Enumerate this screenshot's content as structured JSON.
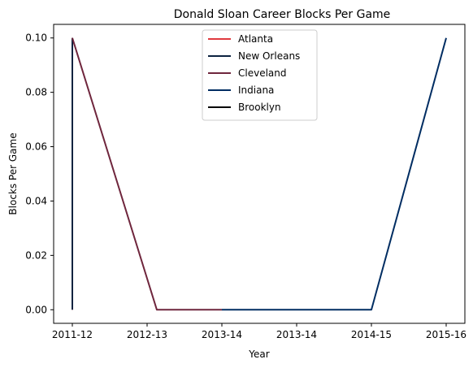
{
  "chart_data": {
    "type": "line",
    "title": "Donald Sloan  Career Blocks Per Game",
    "xlabel": "Year",
    "ylabel": "Blocks Per Game",
    "x_categories": [
      "2011-12",
      "2012-13",
      "2013-14",
      "2013-14",
      "2014-15",
      "2015-16"
    ],
    "xlim": [
      -0.25,
      5.25
    ],
    "ylim": [
      -0.005,
      0.105
    ],
    "yticks": [
      0.0,
      0.02,
      0.04,
      0.06,
      0.08,
      0.1
    ],
    "ytick_labels": [
      "0.00",
      "0.02",
      "0.04",
      "0.06",
      "0.08",
      "0.10"
    ],
    "grid": false,
    "legend": "top-center",
    "series": [
      {
        "name": "Atlanta",
        "color": "#e03a3e",
        "points": [
          [
            0,
            0.1
          ],
          [
            0,
            0.0
          ]
        ]
      },
      {
        "name": "New Orleans",
        "color": "#0c2340",
        "points": [
          [
            0,
            0.1
          ],
          [
            0,
            0.0
          ]
        ]
      },
      {
        "name": "Cleveland",
        "color": "#6f263d",
        "points": [
          [
            0,
            0.1
          ],
          [
            1.13,
            0.0
          ],
          [
            2.0,
            0.0
          ]
        ]
      },
      {
        "name": "Indiana",
        "color": "#002d62",
        "points": [
          [
            2.0,
            0.0
          ],
          [
            3.0,
            0.0
          ],
          [
            4.0,
            0.0
          ],
          [
            5.0,
            0.1
          ]
        ]
      },
      {
        "name": "Brooklyn",
        "color": "#000000",
        "points": []
      }
    ]
  }
}
